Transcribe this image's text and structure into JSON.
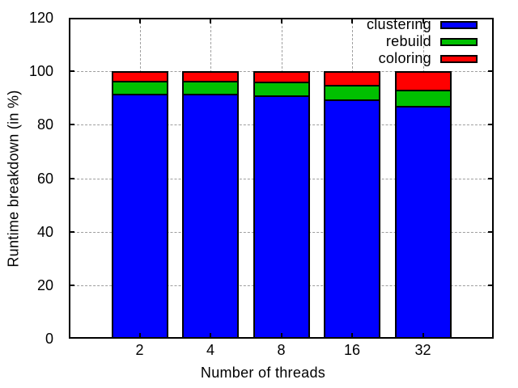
{
  "figure": {
    "background": "#ffffff",
    "border_color": "#000000",
    "grid_color": "#9e9e9e"
  },
  "chart_data": {
    "type": "bar",
    "stacked": true,
    "categories": [
      "2",
      "4",
      "8",
      "16",
      "32"
    ],
    "series": [
      {
        "name": "clustering",
        "color": "#0000ff",
        "values": [
          92.5,
          92.5,
          92.0,
          90.5,
          88.0
        ]
      },
      {
        "name": "rebuild",
        "color": "#00c000",
        "values": [
          4.5,
          4.5,
          4.6,
          5.0,
          5.7
        ]
      },
      {
        "name": "coloring",
        "color": "#ff0000",
        "values": [
          3.0,
          3.0,
          3.4,
          4.5,
          6.3
        ]
      }
    ],
    "title": "",
    "xlabel": "Number of threads",
    "ylabel": "Runtime breakdown (in %)",
    "ylim": [
      0,
      120
    ],
    "yticks": [
      0,
      20,
      40,
      60,
      80,
      100,
      120
    ],
    "grid": true,
    "legend_position": "top-right-inside",
    "bar_width_ratio": 0.8
  }
}
